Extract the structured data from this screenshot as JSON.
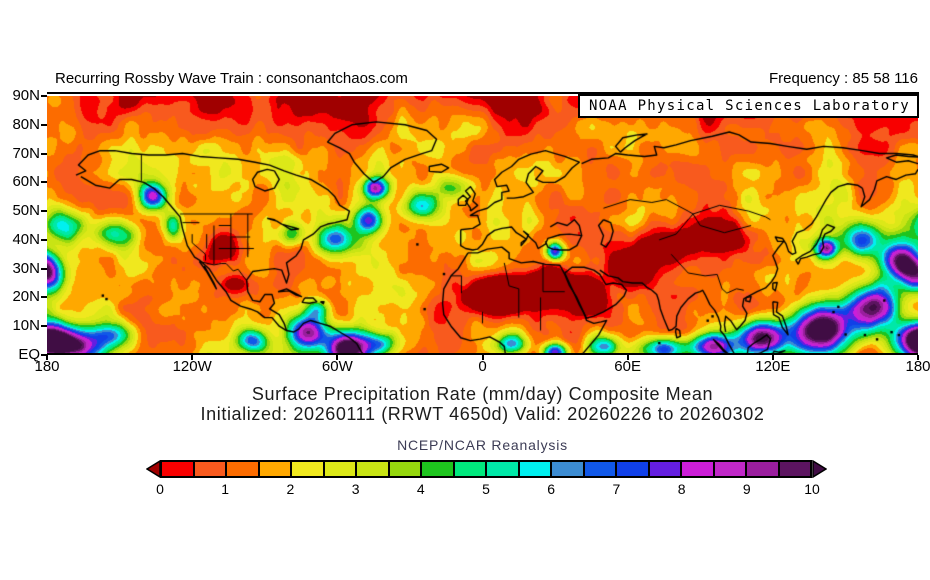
{
  "header": {
    "title": "Recurring Rossby Wave Train : consonantchaos.com",
    "frequency": "Frequency : 85 58 116"
  },
  "map": {
    "watermark": "NOAA Physical Sciences Laboratory",
    "lat_labels": [
      "90N",
      "80N",
      "70N",
      "60N",
      "50N",
      "40N",
      "30N",
      "20N",
      "10N",
      "EQ"
    ],
    "lon_labels": [
      "180",
      "120W",
      "60W",
      "0",
      "60E",
      "120E",
      "180"
    ]
  },
  "caption": {
    "line1": "Surface Precipitation Rate (mm/day) Composite Mean",
    "line2": "Initialized: 20260111 (RRWT 4650d) Valid: 20260226 to 20260302",
    "source": "NCEP/NCAR Reanalysis"
  },
  "colorbar": {
    "tick_labels": [
      "0",
      "1",
      "2",
      "3",
      "4",
      "5",
      "6",
      "7",
      "8",
      "9",
      "10"
    ],
    "cell_colors": [
      "#f80000",
      "#f85a1e",
      "#fc6c00",
      "#ffa800",
      "#f0e81e",
      "#dce818",
      "#c8e414",
      "#96d80e",
      "#1ec41e",
      "#00e87d",
      "#00e8a8",
      "#00f0f0",
      "#3c8cd2",
      "#1158e8",
      "#1040e8",
      "#641ee0",
      "#cc1ed8",
      "#c028c8",
      "#9a1e9e",
      "#5c1460"
    ],
    "below_min_color": "#a00000",
    "above_max_color": "#400d44"
  },
  "chart_data": {
    "type": "heatmap",
    "title": "Surface Precipitation Rate (mm/day) Composite Mean",
    "subtitle": "Initialized: 20260111 (RRWT 4650d) Valid: 20260226 to 20260302",
    "source": "NCEP/NCAR Reanalysis",
    "variable": "Surface Precipitation Rate",
    "units": "mm/day",
    "statistic": "Composite Mean",
    "map_extent": {
      "lon_min": "180",
      "lon_max": "180",
      "lat_min": "EQ",
      "lat_max": "90N"
    },
    "lon_ticks": [
      "180",
      "120W",
      "60W",
      "0",
      "60E",
      "120E",
      "180"
    ],
    "lat_ticks": [
      "90N",
      "80N",
      "70N",
      "60N",
      "50N",
      "40N",
      "30N",
      "20N",
      "10N",
      "EQ"
    ],
    "colorbar_scale": {
      "min": 0,
      "max": 10,
      "cell_step": 0.5,
      "ticks": [
        0,
        1,
        2,
        3,
        4,
        5,
        6,
        7,
        8,
        9,
        10
      ]
    },
    "high_precip_regions": [
      {
        "region": "western tropical Pacific / Maritime Continent (110E-180, EQ-30N)",
        "approx_value_mm_day": "8 to >10"
      },
      {
        "region": "tropical South America / Atlantic ITCZ near 60W, EQ-10N",
        "approx_value_mm_day": "8 to >10"
      },
      {
        "region": "central tropical Pacific near 170W-150W, EQ-10N",
        "approx_value_mm_day": "7 to >10"
      },
      {
        "region": "eastern Indian Ocean (70E-100E, EQ-10N)",
        "approx_value_mm_day": "6-9"
      },
      {
        "region": "Caribbean / Panama (80W-70W, 5N-15N)",
        "approx_value_mm_day": "7-10"
      },
      {
        "region": "North Pacific storm track (35N-55N)",
        "approx_value_mm_day": "4-8"
      },
      {
        "region": "North Atlantic storm track and south of Greenland (40N-60N)",
        "approx_value_mm_day": "4-8"
      },
      {
        "region": "east of Japan (140E-160E, 35N-45N)",
        "approx_value_mm_day": "6-8"
      },
      {
        "region": "eastern Mediterranean near 30E, 35N",
        "approx_value_mm_day": "5-7"
      }
    ],
    "low_precip_regions": [
      {
        "region": "Sahara and Arabian Peninsula",
        "approx_value_mm_day": "0"
      },
      {
        "region": "interior central Asia (30N-50N)",
        "approx_value_mm_day": "0-1"
      },
      {
        "region": "southwestern United States / northern Mexico",
        "approx_value_mm_day": "0-1"
      },
      {
        "region": "Arctic latitudes (70N-90N)",
        "approx_value_mm_day": "0-1.5"
      }
    ]
  }
}
